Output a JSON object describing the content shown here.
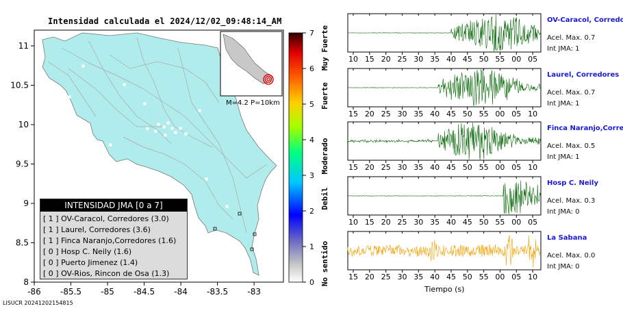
{
  "title": "Intensidad calculada el 2024/12/02_09:48:14_AM",
  "footer_code": "LISUCR 20241202154815",
  "map": {
    "x_ticks": [
      "-86",
      "-85.5",
      "-85",
      "-84.5",
      "-84",
      "-83.5",
      "-83"
    ],
    "y_ticks": [
      "8",
      "8.5",
      "9",
      "9.5",
      "10",
      "10.5",
      "11"
    ],
    "xlim": [
      -86,
      -82.6
    ],
    "ylim": [
      8,
      11.2
    ],
    "land_color": "#b0ecec"
  },
  "inset": {
    "label": "M=4.2 P=10km"
  },
  "colorbar": {
    "ticks": [
      "0",
      "1",
      "2",
      "3",
      "4",
      "5",
      "6",
      "7"
    ],
    "categories": [
      "No sentido",
      "Debil",
      "Moderado",
      "Fuerte",
      "Muy Fuerte"
    ]
  },
  "legend": {
    "title": "INTENSIDAD JMA [0 a 7]",
    "rows": [
      {
        "text": "[ 1 ]  OV-Caracol, Corredores (3.0)"
      },
      {
        "text": "[ 1 ]  Laurel, Corredores (3.6)"
      },
      {
        "text": "[ 1 ]  Finca Naranjo,Corredores (1.6)"
      },
      {
        "text": "[ 0 ]  Hosp C. Neily (1.6)"
      },
      {
        "text": "[ 0 ]  Puerto Jimenez (1.4)"
      },
      {
        "text": "[ 0 ]  OV-Rios, Rincon de Osa (1.3)"
      }
    ]
  },
  "chart_data": {
    "type": "line",
    "xlabel": "Tiempo (s)",
    "series": [
      {
        "name": "OV-Caracol, Corredores",
        "acel": "Acel. Max. 0.7",
        "jma": "Int JMA: 1",
        "color": "#006400",
        "ticks": [
          "10",
          "15",
          "20",
          "25",
          "30",
          "35",
          "40",
          "45",
          "50",
          "55",
          "00",
          "05"
        ],
        "first_tick": 10,
        "onset": 40,
        "peak": 54
      },
      {
        "name": "Laurel, Corredores",
        "acel": "Acel. Max. 0.7",
        "jma": "Int JMA: 1",
        "color": "#006400",
        "ticks": [
          "15",
          "20",
          "25",
          "30",
          "35",
          "40",
          "45",
          "50",
          "55",
          "00",
          "05",
          "10"
        ],
        "first_tick": 15,
        "onset": 41,
        "peak": 54
      },
      {
        "name": "Finca Naranjo,Corredores",
        "acel": "Acel. Max. 0.5",
        "jma": "Int JMA: 1",
        "color": "#006400",
        "ticks": [
          "15",
          "20",
          "25",
          "30",
          "35",
          "40",
          "45",
          "50",
          "55",
          "00",
          "05",
          "10"
        ],
        "first_tick": 15,
        "onset": 41,
        "peak": 52
      },
      {
        "name": "Hosp C. Neily",
        "acel": "Acel. Max. 0.3",
        "jma": "Int JMA: 0",
        "color": "#006400",
        "ticks": [
          "10",
          "15",
          "20",
          "25",
          "30",
          "35",
          "40",
          "45",
          "50",
          "55",
          "00",
          "05"
        ],
        "first_tick": 10,
        "onset": 56,
        "peak": 57
      },
      {
        "name": "La Sabana",
        "acel": "Acel. Max. 0.0",
        "jma": "Int JMA: 0",
        "color": "#f0a000",
        "ticks": [
          "15",
          "20",
          "25",
          "30",
          "35",
          "40",
          "45",
          "50",
          "55",
          "00",
          "05",
          "10"
        ],
        "first_tick": 15,
        "onset": 0,
        "peak": 0
      }
    ]
  }
}
